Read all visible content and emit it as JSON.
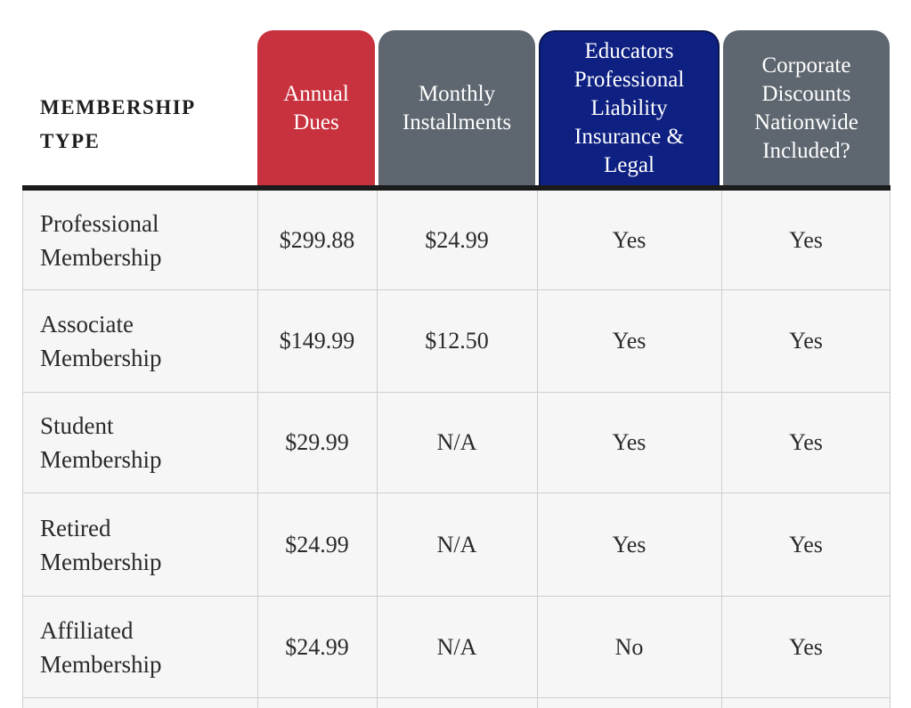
{
  "header": {
    "type_label": "MEMBERSHIP\nTYPE",
    "columns": [
      "Annual\nDues",
      "Monthly\nInstallments",
      "Educators\nProfessional\nLiability\nInsurance &\nLegal",
      "Corporate\nDiscounts\nNationwide\nIncluded?"
    ]
  },
  "colors": {
    "annual_tab": "#c8313e",
    "gray_tab": "#5e666f",
    "educators_tab": "#0e2081",
    "rule": "#1b1b1b"
  },
  "rows": [
    {
      "name": "Professional\nMembership",
      "annual": "$299.88",
      "monthly": "$24.99",
      "liability": "Yes",
      "discounts": "Yes"
    },
    {
      "name": "Associate\nMembership",
      "annual": "$149.99",
      "monthly": "$12.50",
      "liability": "Yes",
      "discounts": "Yes"
    },
    {
      "name": "Student\nMembership",
      "annual": "$29.99",
      "monthly": "N/A",
      "liability": "Yes",
      "discounts": "Yes"
    },
    {
      "name": "Retired\nMembership",
      "annual": "$24.99",
      "monthly": "N/A",
      "liability": "Yes",
      "discounts": "Yes"
    },
    {
      "name": "Affiliated\nMembership",
      "annual": "$24.99",
      "monthly": "N/A",
      "liability": "No",
      "discounts": "Yes"
    }
  ]
}
